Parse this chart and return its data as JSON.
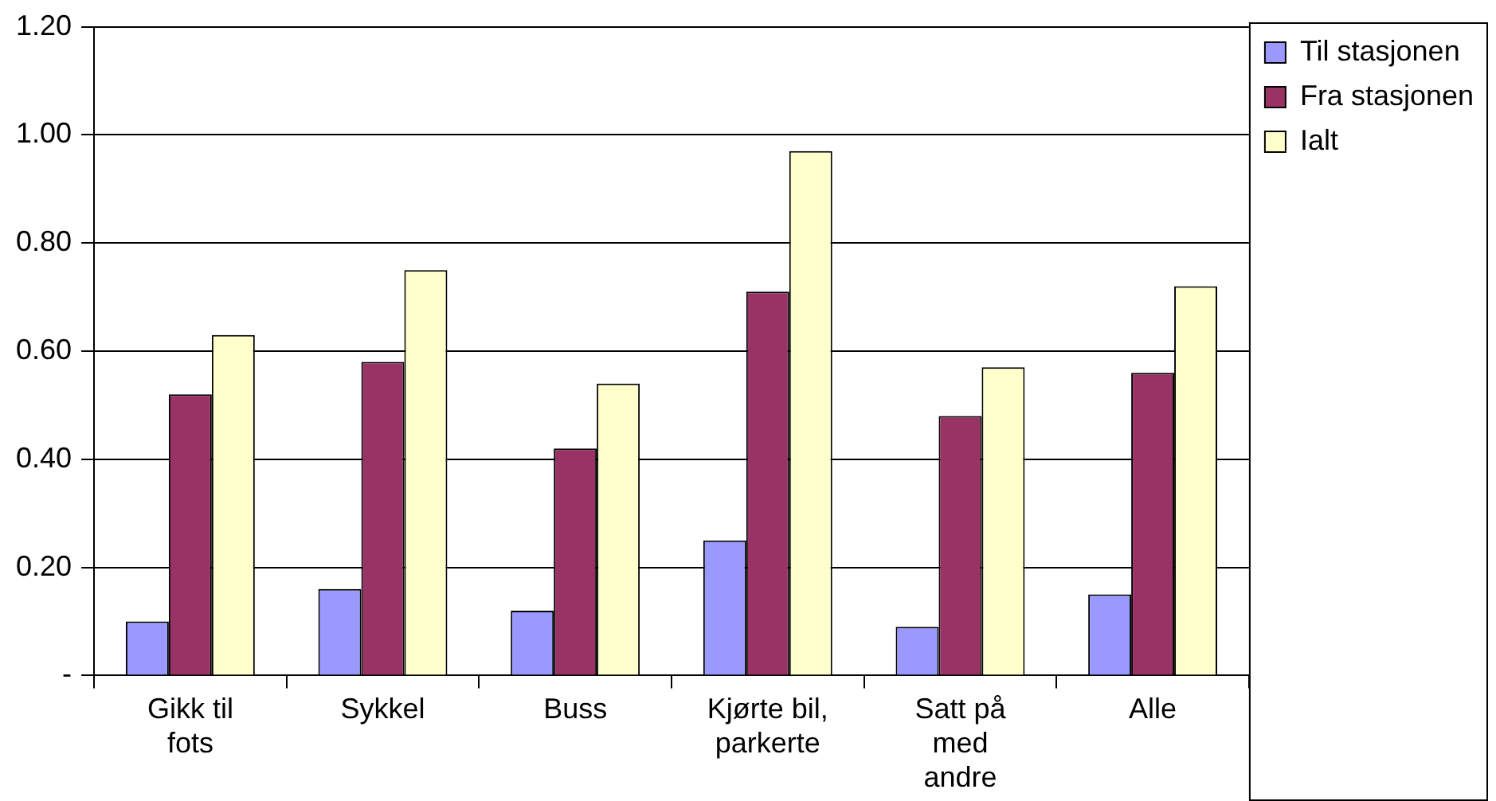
{
  "chart_data": {
    "type": "bar",
    "categories": [
      "Gikk til\nfots",
      "Sykkel",
      "Buss",
      "Kjørte bil,\nparkerte",
      "Satt på\nmed\nandre",
      "Alle"
    ],
    "series": [
      {
        "name": "Til stasjonen",
        "color": "#9999ff",
        "values": [
          0.1,
          0.16,
          0.12,
          0.25,
          0.09,
          0.15
        ]
      },
      {
        "name": "Fra stasjonen",
        "color": "#993366",
        "values": [
          0.52,
          0.58,
          0.42,
          0.71,
          0.48,
          0.56
        ]
      },
      {
        "name": "Ialt",
        "color": "#ffffcc",
        "values": [
          0.63,
          0.75,
          0.54,
          0.97,
          0.57,
          0.72
        ]
      }
    ],
    "ylim": [
      0,
      1.2
    ],
    "yticks": [
      {
        "value": 0,
        "label": "-"
      },
      {
        "value": 0.2,
        "label": "0.20"
      },
      {
        "value": 0.4,
        "label": "0.40"
      },
      {
        "value": 0.6,
        "label": "0.60"
      },
      {
        "value": 0.8,
        "label": "0.80"
      },
      {
        "value": 1.0,
        "label": "1.00"
      },
      {
        "value": 1.2,
        "label": "1.20"
      }
    ],
    "grid": "y",
    "legend": "top right"
  }
}
